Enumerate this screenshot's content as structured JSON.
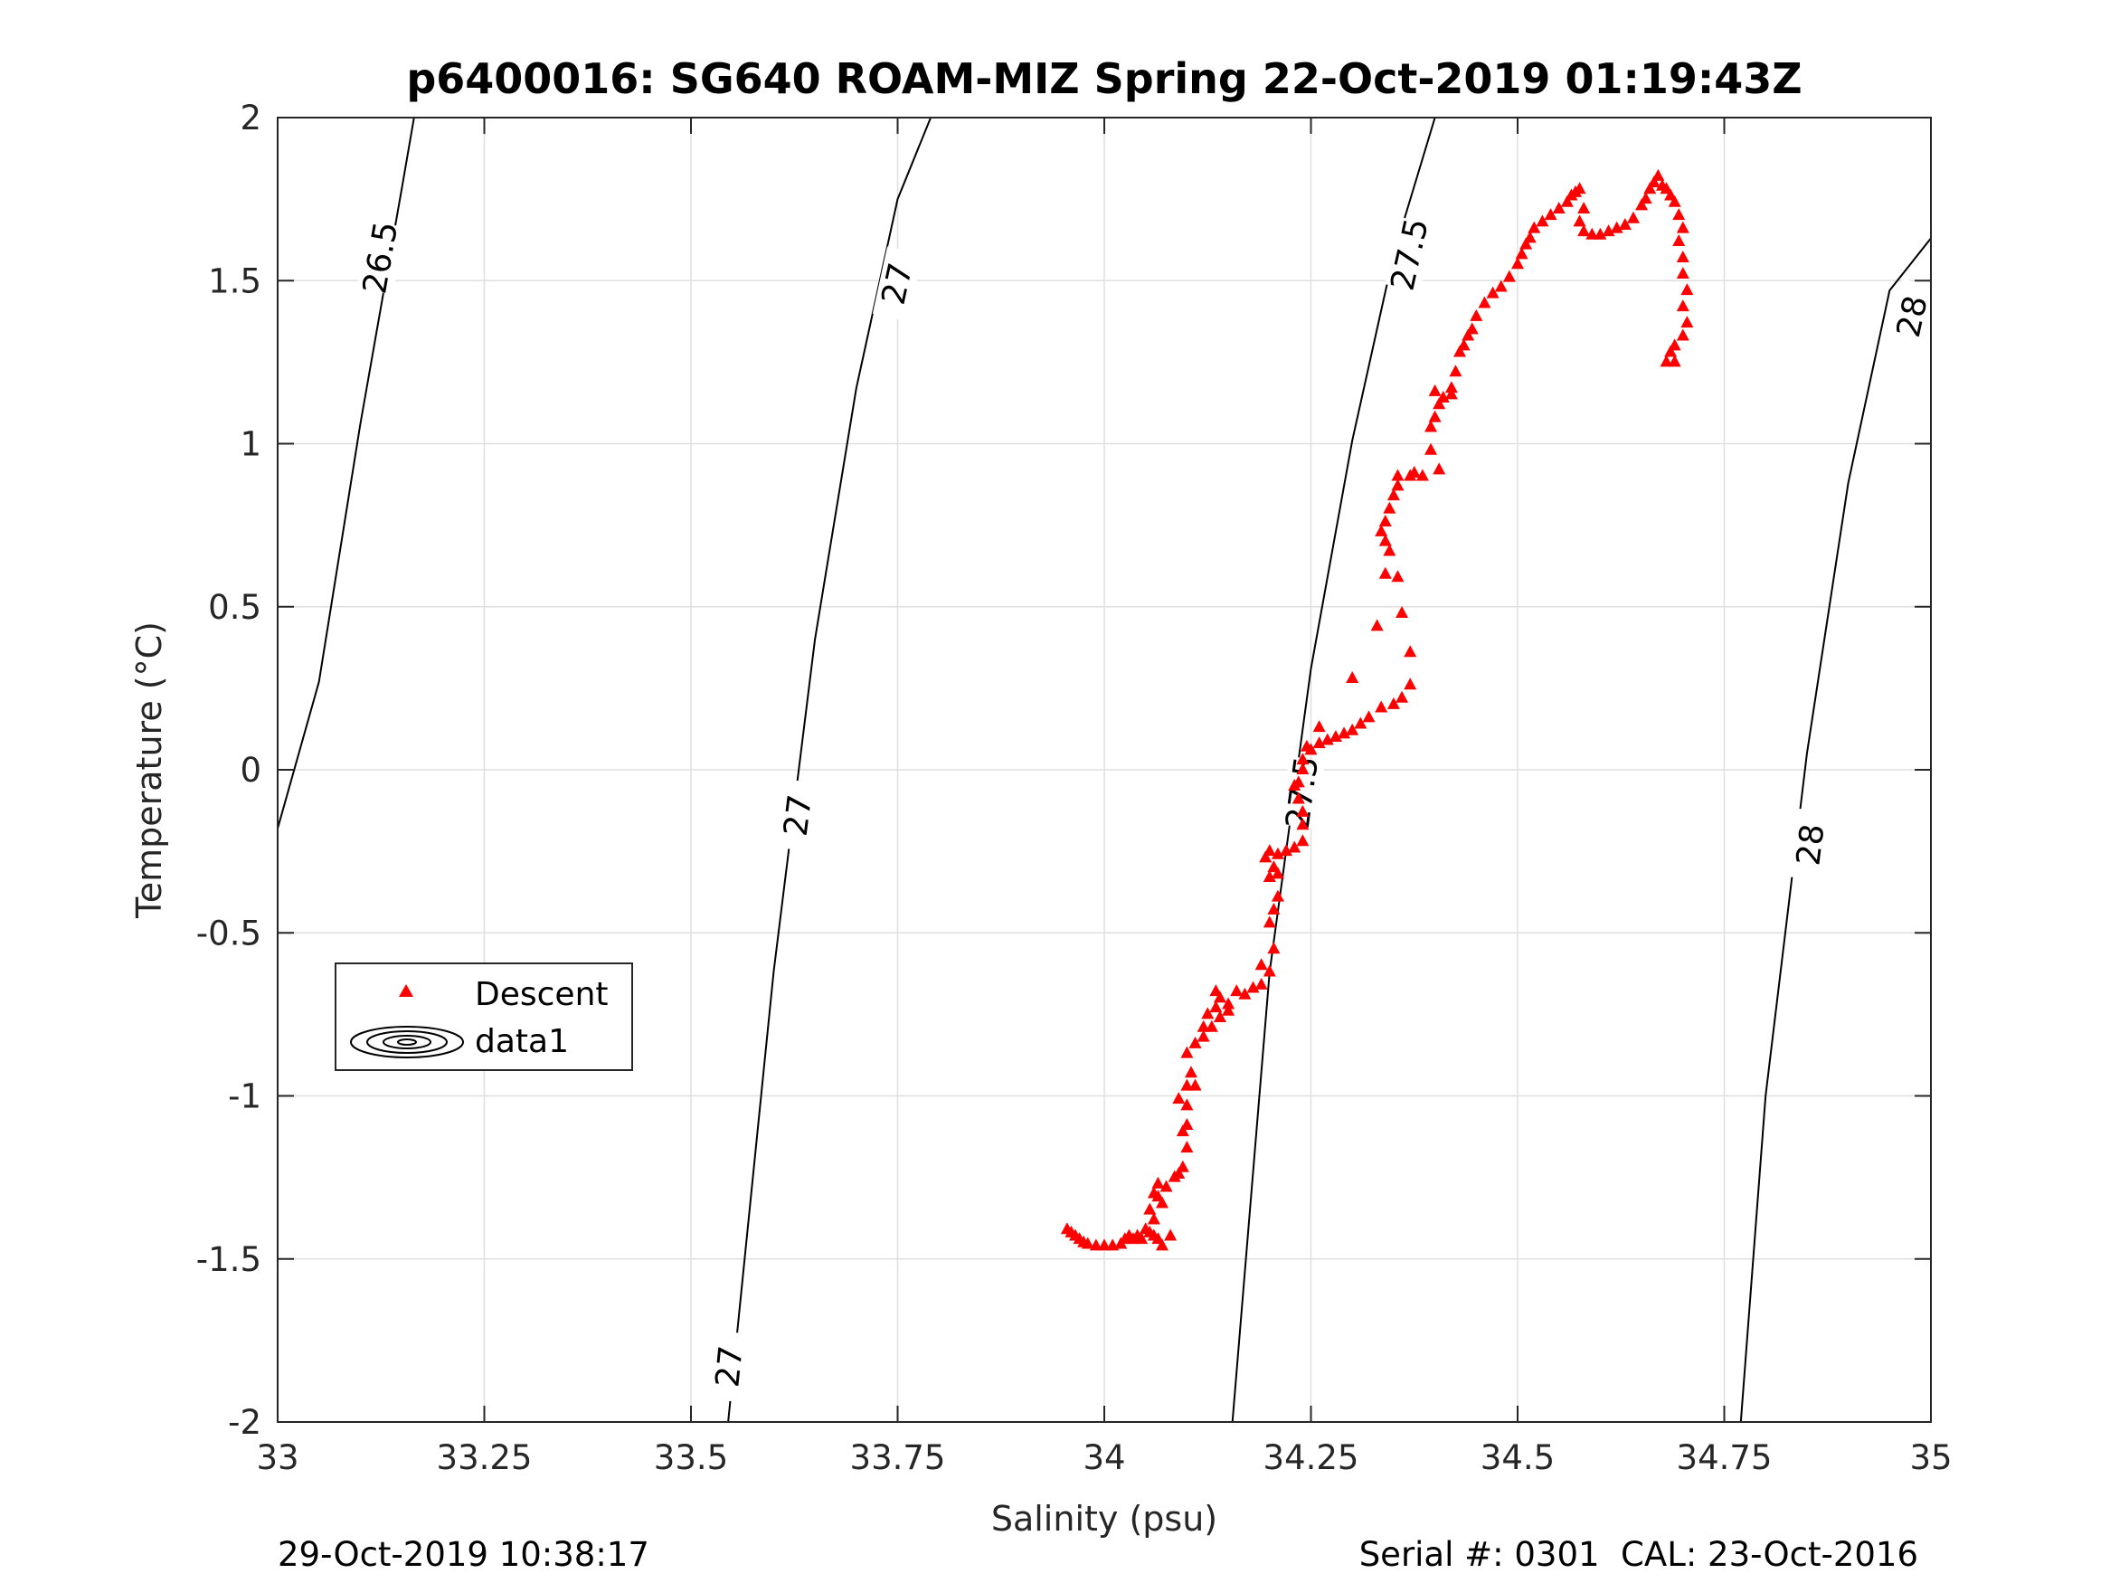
{
  "footer": {
    "left": "29-Oct-2019 10:38:17",
    "right": "Serial #: 0301  CAL: 23-Oct-2016"
  },
  "chart_data": {
    "type": "scatter",
    "title": "p6400016: SG640 ROAM-MIZ Spring 22-Oct-2019 01:19:43Z",
    "xlabel": "Salinity (psu)",
    "ylabel": "Temperature (°C)",
    "xlim": [
      33,
      35
    ],
    "ylim": [
      -2,
      2
    ],
    "xticks": [
      33,
      33.25,
      33.5,
      33.75,
      34,
      34.25,
      34.5,
      34.75,
      35
    ],
    "xtick_labels": [
      "33",
      "33.25",
      "33.5",
      "33.75",
      "34",
      "34.25",
      "34.5",
      "34.75",
      "35"
    ],
    "yticks": [
      -2,
      -1.5,
      -1,
      -0.5,
      0,
      0.5,
      1,
      1.5,
      2
    ],
    "ytick_labels": [
      "-2",
      "-1.5",
      "-1",
      "-0.5",
      "0",
      "0.5",
      "1",
      "1.5",
      "2"
    ],
    "grid": true,
    "legend": {
      "placement": "lower-left",
      "entries": [
        {
          "label": "Descent",
          "marker": "triangle",
          "color": "#ff0000"
        },
        {
          "label": "data1",
          "marker": "contour",
          "color": "#000000"
        }
      ]
    },
    "density_contours": [
      {
        "label": "26.5",
        "points": [
          [
            33.0,
            -0.18
          ],
          [
            33.05,
            0.27
          ],
          [
            33.1,
            1.06
          ],
          [
            33.15,
            1.78
          ],
          [
            33.165,
            2.0
          ]
        ],
        "labels_at": [
          [
            33.125,
            1.57
          ]
        ]
      },
      {
        "label": "27",
        "points": [
          [
            33.545,
            -2.0
          ],
          [
            33.6,
            -0.62
          ],
          [
            33.65,
            0.4
          ],
          [
            33.7,
            1.17
          ],
          [
            33.75,
            1.75
          ],
          [
            33.79,
            2.0
          ]
        ],
        "labels_at": [
          [
            33.547,
            -1.83
          ],
          [
            33.63,
            -0.14
          ],
          [
            33.75,
            1.49
          ]
        ]
      },
      {
        "label": "27.5",
        "points": [
          [
            34.155,
            -2.0
          ],
          [
            34.2,
            -0.62
          ],
          [
            34.25,
            0.31
          ],
          [
            34.3,
            1.01
          ],
          [
            34.35,
            1.58
          ],
          [
            34.4,
            2.0
          ]
        ],
        "labels_at": [
          [
            34.24,
            -0.07
          ],
          [
            34.37,
            1.58
          ]
        ]
      },
      {
        "label": "28",
        "points": [
          [
            34.77,
            -2.0
          ],
          [
            34.8,
            -1.0
          ],
          [
            34.85,
            0.05
          ],
          [
            34.9,
            0.88
          ],
          [
            34.95,
            1.47
          ],
          [
            35.0,
            1.63
          ]
        ],
        "labels_at": [
          [
            34.855,
            -0.23
          ],
          [
            34.978,
            1.39
          ]
        ]
      }
    ],
    "series": [
      {
        "name": "Descent",
        "marker": "triangle",
        "color": "#ff0000",
        "points": [
          [
            33.955,
            -1.41
          ],
          [
            33.96,
            -1.42
          ],
          [
            33.965,
            -1.43
          ],
          [
            33.97,
            -1.44
          ],
          [
            33.975,
            -1.45
          ],
          [
            33.98,
            -1.455
          ],
          [
            33.99,
            -1.46
          ],
          [
            34.0,
            -1.46
          ],
          [
            34.01,
            -1.46
          ],
          [
            34.02,
            -1.455
          ],
          [
            34.025,
            -1.44
          ],
          [
            34.03,
            -1.43
          ],
          [
            34.035,
            -1.44
          ],
          [
            34.04,
            -1.43
          ],
          [
            34.045,
            -1.44
          ],
          [
            34.05,
            -1.41
          ],
          [
            34.055,
            -1.42
          ],
          [
            34.06,
            -1.43
          ],
          [
            34.065,
            -1.44
          ],
          [
            34.055,
            -1.35
          ],
          [
            34.06,
            -1.38
          ],
          [
            34.065,
            -1.31
          ],
          [
            34.06,
            -1.3
          ],
          [
            34.07,
            -1.33
          ],
          [
            34.065,
            -1.27
          ],
          [
            34.075,
            -1.28
          ],
          [
            34.085,
            -1.25
          ],
          [
            34.09,
            -1.24
          ],
          [
            34.095,
            -1.22
          ],
          [
            34.095,
            -1.11
          ],
          [
            34.1,
            -1.09
          ],
          [
            34.1,
            -1.03
          ],
          [
            34.09,
            -1.01
          ],
          [
            34.1,
            -0.97
          ],
          [
            34.105,
            -0.93
          ],
          [
            34.1,
            -0.87
          ],
          [
            34.11,
            -0.84
          ],
          [
            34.12,
            -0.82
          ],
          [
            34.12,
            -0.79
          ],
          [
            34.13,
            -0.79
          ],
          [
            34.125,
            -0.75
          ],
          [
            34.135,
            -0.73
          ],
          [
            34.135,
            -0.68
          ],
          [
            34.14,
            -0.7
          ],
          [
            34.15,
            -0.72
          ],
          [
            34.16,
            -0.68
          ],
          [
            34.17,
            -0.69
          ],
          [
            34.18,
            -0.67
          ],
          [
            34.19,
            -0.66
          ],
          [
            34.2,
            -0.62
          ],
          [
            34.205,
            -0.55
          ],
          [
            34.2,
            -0.47
          ],
          [
            34.205,
            -0.43
          ],
          [
            34.21,
            -0.39
          ],
          [
            34.2,
            -0.33
          ],
          [
            34.195,
            -0.27
          ],
          [
            34.2,
            -0.25
          ],
          [
            34.21,
            -0.26
          ],
          [
            34.22,
            -0.25
          ],
          [
            34.23,
            -0.24
          ],
          [
            34.24,
            -0.22
          ],
          [
            34.24,
            -0.17
          ],
          [
            34.24,
            -0.13
          ],
          [
            34.235,
            -0.09
          ],
          [
            34.235,
            -0.04
          ],
          [
            34.24,
            0.0
          ],
          [
            34.24,
            0.03
          ],
          [
            34.245,
            0.07
          ],
          [
            34.25,
            0.06
          ],
          [
            34.26,
            0.08
          ],
          [
            34.27,
            0.09
          ],
          [
            34.28,
            0.1
          ],
          [
            34.29,
            0.11
          ],
          [
            34.3,
            0.12
          ],
          [
            34.31,
            0.14
          ],
          [
            34.32,
            0.16
          ],
          [
            34.335,
            0.19
          ],
          [
            34.35,
            0.2
          ],
          [
            34.36,
            0.22
          ],
          [
            34.37,
            0.26
          ],
          [
            34.37,
            0.36
          ],
          [
            34.36,
            0.48
          ],
          [
            34.355,
            0.59
          ],
          [
            34.345,
            0.67
          ],
          [
            34.34,
            0.7
          ],
          [
            34.335,
            0.73
          ],
          [
            34.34,
            0.76
          ],
          [
            34.345,
            0.8
          ],
          [
            34.35,
            0.84
          ],
          [
            34.355,
            0.87
          ],
          [
            34.355,
            0.9
          ],
          [
            34.37,
            0.9
          ],
          [
            34.385,
            0.9
          ],
          [
            34.405,
            0.92
          ],
          [
            34.395,
            0.98
          ],
          [
            34.395,
            1.05
          ],
          [
            34.4,
            1.08
          ],
          [
            34.405,
            1.12
          ],
          [
            34.41,
            1.14
          ],
          [
            34.42,
            1.17
          ],
          [
            34.425,
            1.22
          ],
          [
            34.43,
            1.28
          ],
          [
            34.435,
            1.3
          ],
          [
            34.44,
            1.33
          ],
          [
            34.445,
            1.35
          ],
          [
            34.45,
            1.39
          ],
          [
            34.46,
            1.43
          ],
          [
            34.47,
            1.46
          ],
          [
            34.48,
            1.48
          ],
          [
            34.49,
            1.51
          ],
          [
            34.5,
            1.55
          ],
          [
            34.505,
            1.58
          ],
          [
            34.51,
            1.61
          ],
          [
            34.515,
            1.63
          ],
          [
            34.52,
            1.66
          ],
          [
            34.53,
            1.68
          ],
          [
            34.54,
            1.7
          ],
          [
            34.55,
            1.72
          ],
          [
            34.56,
            1.74
          ],
          [
            34.565,
            1.76
          ],
          [
            34.57,
            1.77
          ],
          [
            34.575,
            1.78
          ],
          [
            34.58,
            1.72
          ],
          [
            34.575,
            1.68
          ],
          [
            34.58,
            1.65
          ],
          [
            34.59,
            1.64
          ],
          [
            34.6,
            1.64
          ],
          [
            34.61,
            1.65
          ],
          [
            34.62,
            1.66
          ],
          [
            34.63,
            1.67
          ],
          [
            34.64,
            1.69
          ],
          [
            34.65,
            1.73
          ],
          [
            34.655,
            1.75
          ],
          [
            34.66,
            1.78
          ],
          [
            34.665,
            1.8
          ],
          [
            34.67,
            1.82
          ],
          [
            34.675,
            1.79
          ],
          [
            34.68,
            1.78
          ],
          [
            34.685,
            1.76
          ],
          [
            34.69,
            1.74
          ],
          [
            34.695,
            1.7
          ],
          [
            34.7,
            1.66
          ],
          [
            34.695,
            1.62
          ],
          [
            34.7,
            1.57
          ],
          [
            34.7,
            1.52
          ],
          [
            34.705,
            1.47
          ],
          [
            34.7,
            1.42
          ],
          [
            34.705,
            1.37
          ],
          [
            34.7,
            1.33
          ],
          [
            34.69,
            1.3
          ],
          [
            34.685,
            1.28
          ],
          [
            34.68,
            1.25
          ],
          [
            34.69,
            1.25
          ],
          [
            34.4,
            1.16
          ],
          [
            34.42,
            1.15
          ],
          [
            34.375,
            0.91
          ],
          [
            34.34,
            0.6
          ],
          [
            34.33,
            0.44
          ],
          [
            34.3,
            0.28
          ],
          [
            34.26,
            0.13
          ],
          [
            34.21,
            -0.32
          ],
          [
            34.205,
            -0.3
          ],
          [
            34.07,
            -1.46
          ],
          [
            34.08,
            -1.43
          ],
          [
            34.1,
            -1.16
          ],
          [
            34.11,
            -0.97
          ],
          [
            34.14,
            -0.76
          ],
          [
            34.15,
            -0.74
          ],
          [
            34.19,
            -0.6
          ],
          [
            34.23,
            -0.05
          ]
        ]
      }
    ]
  }
}
